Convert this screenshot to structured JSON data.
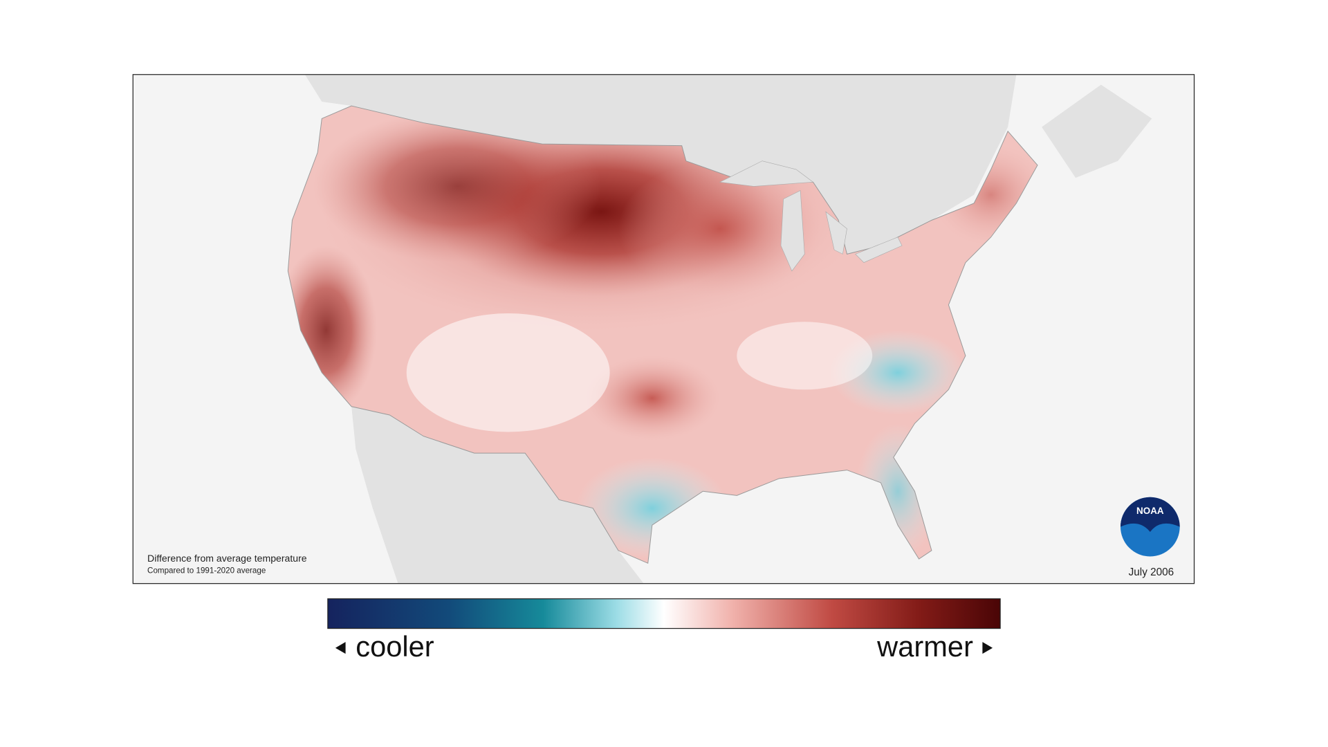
{
  "map": {
    "caption_title": "Difference from average temperature",
    "caption_subtitle": "Compared to 1991-2020 average",
    "date": "July 2006",
    "logo": "NOAA"
  },
  "legend": {
    "low_label": "cooler",
    "high_label": "warmer"
  }
}
